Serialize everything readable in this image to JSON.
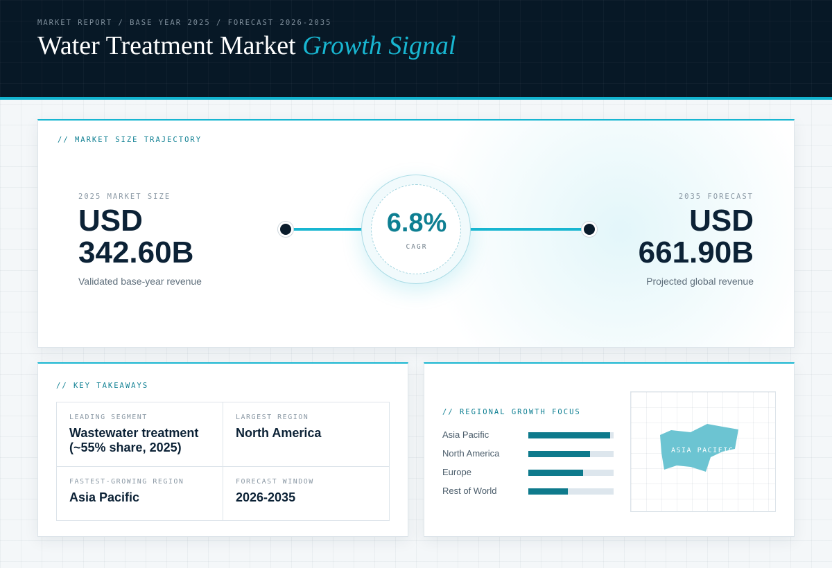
{
  "header": {
    "breadcrumb": "MARKET REPORT / BASE YEAR 2025 / FORECAST 2026-2035",
    "title_main": "Water Treatment Market ",
    "title_accent": "Growth Signal"
  },
  "trajectory": {
    "label": "// MARKET SIZE TRAJECTORY",
    "start": {
      "label": "2025 MARKET SIZE",
      "currency": "USD",
      "value": "342.60B",
      "sub": "Validated base-year revenue"
    },
    "end": {
      "label": "2035 FORECAST",
      "currency": "USD",
      "value": "661.90B",
      "sub": "Projected global revenue"
    },
    "cagr_value": "6.8%",
    "cagr_label": "CAGR"
  },
  "takeaways": {
    "label": "// KEY TAKEAWAYS",
    "items": [
      {
        "label": "LEADING SEGMENT",
        "value": "Wastewater treatment (~55% share, 2025)"
      },
      {
        "label": "LARGEST REGION",
        "value": "North America"
      },
      {
        "label": "FASTEST-GROWING REGION",
        "value": "Asia Pacific"
      },
      {
        "label": "FORECAST WINDOW",
        "value": "2026-2035"
      }
    ]
  },
  "regional": {
    "label": "// REGIONAL GROWTH FOCUS",
    "map_label": "ASIA PACIFIC"
  },
  "colors": {
    "accent": "#18b6d1",
    "bar_fill": "#0e7a8c",
    "bar_track": "#dde6ed",
    "map_shape": "#6cc4d2",
    "header_bg": "#071826"
  },
  "chart_data": {
    "type": "bar",
    "orientation": "horizontal",
    "categories": [
      "Asia Pacific",
      "North America",
      "Europe",
      "Rest of World"
    ],
    "values": [
      0.96,
      0.72,
      0.64,
      0.46
    ],
    "value_unit": "relative growth emphasis (fraction of track)",
    "xlim": [
      0,
      1
    ]
  }
}
